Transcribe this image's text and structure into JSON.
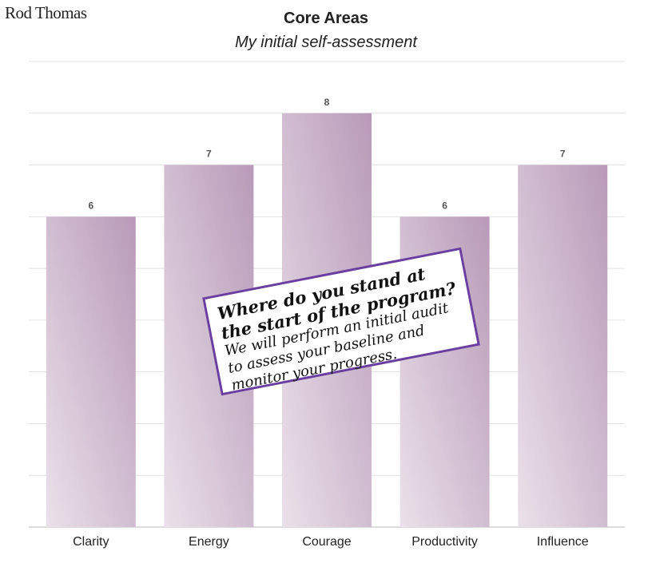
{
  "brand": {
    "logo_text": "Rod Thomas"
  },
  "chart_data": {
    "type": "bar",
    "title": "Core Areas",
    "subtitle": "My initial self-assessment",
    "categories": [
      "Clarity",
      "Energy",
      "Courage",
      "Productivity",
      "Influence"
    ],
    "values": [
      6,
      7,
      8,
      6,
      7
    ],
    "ylim": [
      0,
      9
    ],
    "grid": true,
    "legend": "none",
    "colors": {
      "bar_light": "#ebe1ea",
      "bar_dark": "#b89ab8",
      "grid": "#e3e3e3",
      "label": "#555555"
    }
  },
  "callout": {
    "heading": "Where do you stand at the start of the program?",
    "body": "We will perform an initial audit to assess your baseline and monitor your progress.",
    "border_color": "#6b3fa0"
  }
}
